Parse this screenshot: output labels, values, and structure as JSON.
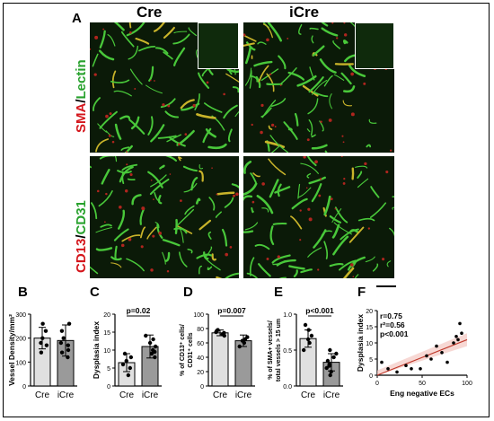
{
  "panel_A": {
    "letter": "A",
    "col_left": "Cre",
    "col_right": "iCre",
    "row1_label": {
      "red": "SMA",
      "sep": "/",
      "green": "Lectin"
    },
    "row2_label": {
      "red": "CD13",
      "sep": "/",
      "green": "CD31"
    }
  },
  "letters": {
    "B": "B",
    "C": "C",
    "D": "D",
    "E": "E",
    "F": "F"
  },
  "chart_data": [
    {
      "panel": "B",
      "type": "bar",
      "ylabel": "Vessel Density/mm²",
      "categories": [
        "Cre",
        "iCre"
      ],
      "values": [
        200,
        190
      ],
      "errors": [
        45,
        65
      ],
      "ylim": [
        0,
        300
      ],
      "yticks": [
        "0",
        "100",
        "200",
        "300"
      ],
      "points": [
        [
          140,
          170,
          200,
          230,
          260,
          180
        ],
        [
          120,
          150,
          180,
          200,
          230,
          260,
          170,
          140
        ]
      ],
      "annotation": ""
    },
    {
      "panel": "C",
      "type": "bar",
      "ylabel": "Dysplasia index",
      "categories": [
        "Cre",
        "iCre"
      ],
      "values": [
        6.5,
        11
      ],
      "errors": [
        2.5,
        3.2
      ],
      "ylim": [
        0,
        20
      ],
      "yticks": [
        "0",
        "5",
        "10",
        "15",
        "20"
      ],
      "points": [
        [
          3,
          5,
          6,
          7,
          8,
          9
        ],
        [
          8,
          9,
          10,
          11,
          12,
          13,
          14,
          9.5
        ]
      ],
      "annotation": "p=0.02"
    },
    {
      "panel": "D",
      "type": "bar",
      "ylabel": "% of CD13⁺ cells/ CD31⁺ cells",
      "categories": [
        "Cre",
        "iCre"
      ],
      "values": [
        74,
        63
      ],
      "errors": [
        4,
        8
      ],
      "ylim": [
        0,
        100
      ],
      "yticks": [
        "0",
        "20",
        "40",
        "60",
        "80",
        "100"
      ],
      "points": [
        [
          70,
          72,
          74,
          75,
          77,
          78
        ],
        [
          55,
          60,
          63,
          65,
          68
        ]
      ],
      "annotation": "p=0.007"
    },
    {
      "panel": "E",
      "type": "bar",
      "ylabel": "% of SMA+ vessels/ total vessels > 15 um",
      "categories": [
        "Cre",
        "iCre"
      ],
      "values": [
        0.66,
        0.33
      ],
      "errors": [
        0.12,
        0.12
      ],
      "ylim": [
        0,
        1.0
      ],
      "yticks": [
        "0.0",
        "0.5",
        "1.0"
      ],
      "points": [
        [
          0.5,
          0.6,
          0.65,
          0.7,
          0.78,
          0.85
        ],
        [
          0.15,
          0.2,
          0.25,
          0.3,
          0.35,
          0.4,
          0.45,
          0.5,
          0.28
        ]
      ],
      "annotation": "p<0.001"
    },
    {
      "panel": "F",
      "type": "scatter",
      "ylabel": "Dysplasia index",
      "xlabel": "Eng negative ECs",
      "xlim": [
        0,
        100
      ],
      "ylim": [
        0,
        20
      ],
      "xticks": [
        "0",
        "50",
        "100"
      ],
      "yticks": [
        "0",
        "5",
        "10",
        "15",
        "20"
      ],
      "x": [
        5,
        12,
        22,
        32,
        38,
        48,
        55,
        60,
        66,
        72,
        78,
        85,
        88,
        90,
        92,
        94
      ],
      "y": [
        4,
        2,
        1,
        3,
        2,
        2,
        6,
        5,
        9,
        7,
        4,
        10,
        12,
        11,
        16,
        13
      ],
      "fit": {
        "x": [
          0,
          100
        ],
        "y": [
          0,
          11
        ]
      },
      "stats": [
        "r=0.75",
        "r²=0.56",
        "p<0.001"
      ]
    }
  ]
}
